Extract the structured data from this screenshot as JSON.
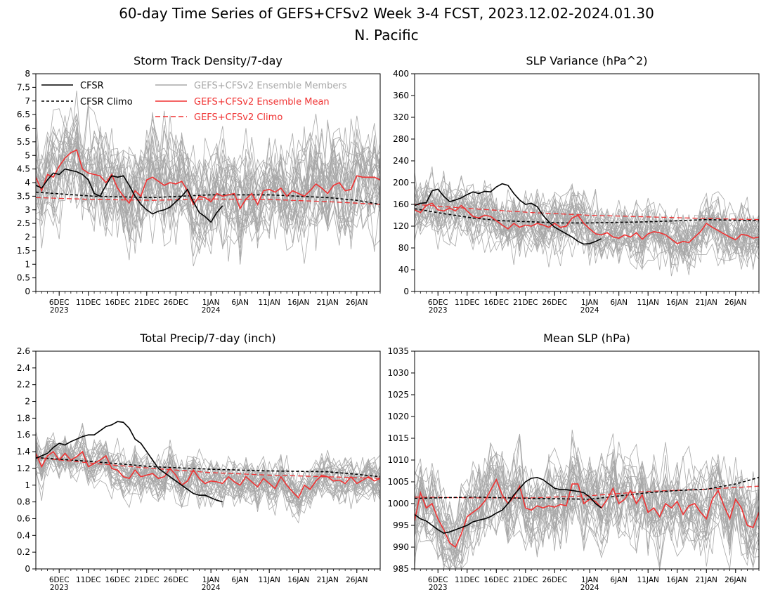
{
  "header": {
    "title": "60-day Time Series of GEFS+CFSv2 Week 3-4 FCST, 2023.12.02-2024.01.30",
    "subtitle": "N. Pacific"
  },
  "legend": {
    "cfsr": "CFSR",
    "cfsr_climo": "CFSR Climo",
    "members": "GEFS+CFSv2 Ensemble Members",
    "mean": "GEFS+CFSv2 Ensemble Mean",
    "climo": "GEFS+CFSv2 Climo"
  },
  "colors": {
    "cfsr": "#000000",
    "members": "#a8a8a8",
    "ensemble": "#f03232"
  },
  "x_ticks": [
    {
      "day": 4,
      "label": "6DEC",
      "year": "2023"
    },
    {
      "day": 9,
      "label": "11DEC"
    },
    {
      "day": 14,
      "label": "16DEC"
    },
    {
      "day": 19,
      "label": "21DEC"
    },
    {
      "day": 24,
      "label": "26DEC"
    },
    {
      "day": 30,
      "label": "1JAN",
      "year": "2024"
    },
    {
      "day": 35,
      "label": "6JAN"
    },
    {
      "day": 40,
      "label": "11JAN"
    },
    {
      "day": 45,
      "label": "16JAN"
    },
    {
      "day": 50,
      "label": "21JAN"
    },
    {
      "day": 55,
      "label": "26JAN"
    }
  ],
  "chart_data": [
    {
      "type": "line",
      "title": "Storm Track Density/7-day",
      "ylim": [
        0,
        8
      ],
      "yticks": [
        0,
        0.5,
        1,
        1.5,
        2,
        2.5,
        3,
        3.5,
        4,
        4.5,
        5,
        5.5,
        6,
        6.5,
        7,
        7.5,
        8
      ],
      "xlim": [
        0,
        59
      ],
      "legend": "top-left",
      "member_count": 30,
      "member_spread": 1.3,
      "member_seed": 11,
      "series": [
        {
          "name": "CFSR",
          "x": [
            0,
            1,
            2,
            3,
            4,
            5,
            6,
            7,
            8,
            9,
            10,
            11,
            12,
            13,
            14,
            15,
            16,
            17,
            18,
            19,
            20,
            21,
            22,
            23,
            24,
            25,
            26,
            27,
            28,
            29,
            30,
            31,
            32
          ],
          "values": [
            3.9,
            3.8,
            4.1,
            4.35,
            4.3,
            4.5,
            4.45,
            4.4,
            4.3,
            4.1,
            3.6,
            3.5,
            3.9,
            4.25,
            4.2,
            4.25,
            3.9,
            3.5,
            3.2,
            3.0,
            2.85,
            2.95,
            3.0,
            3.1,
            3.3,
            3.5,
            3.75,
            3.3,
            2.9,
            2.75,
            2.55,
            2.9,
            3.15
          ]
        },
        {
          "name": "CFSR Climo",
          "x": [
            0,
            10,
            20,
            30,
            40,
            50,
            55,
            59
          ],
          "values": [
            3.65,
            3.5,
            3.45,
            3.55,
            3.55,
            3.45,
            3.35,
            3.2
          ]
        },
        {
          "name": "GEFS+CFSv2 Ensemble Mean",
          "x": [
            0,
            1,
            2,
            3,
            4,
            5,
            6,
            7,
            8,
            9,
            10,
            11,
            12,
            13,
            14,
            15,
            16,
            17,
            18,
            19,
            20,
            21,
            22,
            23,
            24,
            25,
            26,
            27,
            28,
            29,
            30,
            31,
            32,
            33,
            34,
            35,
            36,
            37,
            38,
            39,
            40,
            41,
            42,
            43,
            44,
            45,
            46,
            47,
            48,
            49,
            50,
            51,
            52,
            53,
            54,
            55,
            56,
            57,
            58,
            59
          ],
          "values": [
            4.2,
            3.7,
            4.3,
            4.2,
            4.6,
            4.9,
            5.1,
            5.2,
            4.5,
            4.35,
            4.3,
            4.25,
            4.0,
            4.3,
            3.8,
            3.5,
            3.25,
            3.7,
            3.5,
            4.1,
            4.2,
            4.05,
            3.9,
            4.0,
            3.95,
            4.05,
            3.7,
            3.2,
            3.5,
            3.45,
            3.3,
            3.6,
            3.5,
            3.55,
            3.6,
            3.05,
            3.4,
            3.6,
            3.2,
            3.7,
            3.75,
            3.65,
            3.8,
            3.5,
            3.7,
            3.6,
            3.5,
            3.7,
            3.95,
            3.8,
            3.6,
            3.9,
            4.0,
            3.7,
            3.75,
            4.25,
            4.2,
            4.2,
            4.2,
            4.1
          ]
        },
        {
          "name": "GEFS+CFSv2 Climo",
          "x": [
            0,
            10,
            20,
            30,
            40,
            50,
            59
          ],
          "values": [
            3.45,
            3.38,
            3.35,
            3.4,
            3.38,
            3.3,
            3.2
          ]
        }
      ]
    },
    {
      "type": "line",
      "title": "SLP Variance (hPa^2)",
      "ylim": [
        0,
        400
      ],
      "yticks": [
        0,
        40,
        80,
        120,
        160,
        200,
        240,
        280,
        320,
        360,
        400
      ],
      "xlim": [
        0,
        59
      ],
      "member_count": 30,
      "member_spread": 38,
      "member_seed": 23,
      "series": [
        {
          "name": "CFSR",
          "x": [
            0,
            1,
            2,
            3,
            4,
            5,
            6,
            7,
            8,
            9,
            10,
            11,
            12,
            13,
            14,
            15,
            16,
            17,
            18,
            19,
            20,
            21,
            22,
            23,
            24,
            25,
            26,
            27,
            28,
            29,
            30,
            31,
            32
          ],
          "values": [
            158,
            162,
            163,
            185,
            188,
            175,
            165,
            168,
            172,
            178,
            183,
            180,
            184,
            183,
            192,
            198,
            195,
            180,
            168,
            160,
            162,
            156,
            140,
            128,
            118,
            112,
            106,
            100,
            92,
            87,
            88,
            92,
            97
          ]
        },
        {
          "name": "CFSR Climo",
          "x": [
            0,
            5,
            10,
            15,
            20,
            25,
            30,
            40,
            50,
            59
          ],
          "values": [
            152,
            143,
            135,
            130,
            128,
            126,
            126,
            128,
            132,
            130
          ]
        },
        {
          "name": "GEFS+CFSv2 Ensemble Mean",
          "x": [
            0,
            1,
            2,
            3,
            4,
            5,
            6,
            7,
            8,
            9,
            10,
            11,
            12,
            13,
            14,
            15,
            16,
            17,
            18,
            19,
            20,
            21,
            22,
            23,
            24,
            25,
            26,
            27,
            28,
            29,
            30,
            31,
            32,
            33,
            34,
            35,
            36,
            37,
            38,
            39,
            40,
            41,
            42,
            43,
            44,
            45,
            46,
            47,
            48,
            49,
            50,
            51,
            52,
            53,
            54,
            55,
            56,
            57,
            58,
            59
          ],
          "values": [
            150,
            145,
            158,
            162,
            150,
            148,
            153,
            148,
            158,
            148,
            138,
            135,
            140,
            138,
            130,
            122,
            115,
            125,
            118,
            122,
            120,
            125,
            122,
            118,
            125,
            118,
            120,
            135,
            140,
            125,
            115,
            106,
            104,
            108,
            100,
            98,
            104,
            100,
            108,
            96,
            106,
            110,
            108,
            104,
            96,
            88,
            92,
            90,
            100,
            110,
            125,
            118,
            112,
            106,
            100,
            95,
            105,
            103,
            98,
            100
          ]
        },
        {
          "name": "GEFS+CFSv2 Climo",
          "x": [
            0,
            10,
            20,
            30,
            40,
            50,
            59
          ],
          "values": [
            160,
            152,
            145,
            140,
            137,
            134,
            132
          ]
        }
      ]
    },
    {
      "type": "line",
      "title": "Total Precip/7-day (inch)",
      "ylim": [
        0,
        2.6
      ],
      "yticks": [
        0,
        0.2,
        0.4,
        0.6,
        0.8,
        1,
        1.2,
        1.4,
        1.6,
        1.8,
        2,
        2.2,
        2.4,
        2.6
      ],
      "xlim": [
        0,
        59
      ],
      "member_count": 30,
      "member_spread": 0.18,
      "member_seed": 37,
      "series": [
        {
          "name": "CFSR",
          "x": [
            0,
            1,
            2,
            3,
            4,
            5,
            6,
            7,
            8,
            9,
            10,
            11,
            12,
            13,
            14,
            15,
            16,
            17,
            18,
            19,
            20,
            21,
            22,
            23,
            24,
            25,
            26,
            27,
            28,
            29,
            30,
            31,
            32
          ],
          "values": [
            1.32,
            1.35,
            1.38,
            1.45,
            1.5,
            1.48,
            1.52,
            1.55,
            1.58,
            1.6,
            1.6,
            1.65,
            1.7,
            1.72,
            1.76,
            1.75,
            1.68,
            1.55,
            1.5,
            1.4,
            1.3,
            1.2,
            1.15,
            1.1,
            1.05,
            1.0,
            0.95,
            0.9,
            0.88,
            0.88,
            0.85,
            0.82,
            0.8
          ]
        },
        {
          "name": "CFSR Climo",
          "x": [
            0,
            10,
            20,
            30,
            40,
            50,
            55,
            59
          ],
          "values": [
            1.33,
            1.28,
            1.22,
            1.19,
            1.17,
            1.16,
            1.13,
            1.1
          ]
        },
        {
          "name": "GEFS+CFSv2 Ensemble Mean",
          "x": [
            0,
            1,
            2,
            3,
            4,
            5,
            6,
            7,
            8,
            9,
            10,
            11,
            12,
            13,
            14,
            15,
            16,
            17,
            18,
            19,
            20,
            21,
            22,
            23,
            24,
            25,
            26,
            27,
            28,
            29,
            30,
            31,
            32,
            33,
            34,
            35,
            36,
            37,
            38,
            39,
            40,
            41,
            42,
            43,
            44,
            45,
            46,
            47,
            48,
            49,
            50,
            51,
            52,
            53,
            54,
            55,
            56,
            57,
            58,
            59
          ],
          "values": [
            1.38,
            1.22,
            1.35,
            1.4,
            1.3,
            1.38,
            1.3,
            1.34,
            1.4,
            1.22,
            1.26,
            1.3,
            1.35,
            1.2,
            1.18,
            1.1,
            1.08,
            1.18,
            1.1,
            1.12,
            1.14,
            1.08,
            1.1,
            1.2,
            1.12,
            1.0,
            1.05,
            1.18,
            1.08,
            1.02,
            1.05,
            1.04,
            1.02,
            1.1,
            1.04,
            1.0,
            1.1,
            1.04,
            0.98,
            1.08,
            1.02,
            0.96,
            1.1,
            1.0,
            0.92,
            0.85,
            1.0,
            0.95,
            1.05,
            1.12,
            1.1,
            1.05,
            1.06,
            1.02,
            1.1,
            1.02,
            1.06,
            1.1,
            1.05,
            1.08
          ]
        },
        {
          "name": "GEFS+CFSv2 Climo",
          "x": [
            0,
            10,
            20,
            30,
            40,
            50,
            59
          ],
          "values": [
            1.33,
            1.26,
            1.2,
            1.15,
            1.12,
            1.1,
            1.08
          ]
        }
      ]
    },
    {
      "type": "line",
      "title": "Mean SLP (hPa)",
      "ylim": [
        985,
        1035
      ],
      "yticks": [
        985,
        990,
        995,
        1000,
        1005,
        1010,
        1015,
        1020,
        1025,
        1030,
        1035
      ],
      "xlim": [
        0,
        59
      ],
      "member_count": 30,
      "member_spread": 6.5,
      "member_seed": 53,
      "series": [
        {
          "name": "CFSR",
          "x": [
            0,
            1,
            2,
            3,
            4,
            5,
            6,
            7,
            8,
            9,
            10,
            11,
            12,
            13,
            14,
            15,
            16,
            17,
            18,
            19,
            20,
            21,
            22,
            23,
            24,
            25,
            26,
            27,
            28,
            29,
            30,
            31,
            32
          ],
          "values": [
            997.5,
            996.5,
            996,
            995,
            994,
            993.2,
            993.5,
            994,
            994.5,
            995,
            995.8,
            996.2,
            996.5,
            997,
            997.8,
            998.5,
            1000,
            1002,
            1003.5,
            1005,
            1005.8,
            1006,
            1005.5,
            1004.5,
            1003.5,
            1003.2,
            1003.2,
            1003,
            1002.8,
            1002.5,
            1001.5,
            1000,
            999
          ]
        },
        {
          "name": "CFSR Climo",
          "x": [
            0,
            10,
            20,
            30,
            40,
            45,
            50,
            55,
            59
          ],
          "values": [
            1001.2,
            1001.5,
            1001.2,
            1001,
            1002.5,
            1003,
            1003.3,
            1004.5,
            1006
          ]
        },
        {
          "name": "GEFS+CFSv2 Ensemble Mean",
          "x": [
            0,
            1,
            2,
            3,
            4,
            5,
            6,
            7,
            8,
            9,
            10,
            11,
            12,
            13,
            14,
            15,
            16,
            17,
            18,
            19,
            20,
            21,
            22,
            23,
            24,
            25,
            26,
            27,
            28,
            29,
            30,
            31,
            32,
            33,
            34,
            35,
            36,
            37,
            38,
            39,
            40,
            41,
            42,
            43,
            44,
            45,
            46,
            47,
            48,
            49,
            50,
            51,
            52,
            53,
            54,
            55,
            56,
            57,
            58,
            59
          ],
          "values": [
            996,
            1002.5,
            999,
            1000,
            996.5,
            994,
            991,
            990,
            993,
            997,
            998,
            999,
            1000.5,
            1003,
            1005.5,
            1002,
            1000,
            1001.5,
            1004,
            999,
            998.5,
            999.5,
            999,
            999.5,
            999.2,
            999.8,
            999.5,
            1004.5,
            1004.5,
            1000,
            1001,
            1000.5,
            999,
            1001,
            1003.5,
            1000,
            1001,
            1003,
            1000,
            1002,
            998,
            999,
            997,
            1000,
            999,
            1000.5,
            997.5,
            999.5,
            1000,
            998,
            996.5,
            1001,
            1003,
            999.5,
            996.5,
            1001,
            999,
            995,
            994.5,
            998
          ]
        },
        {
          "name": "GEFS+CFSv2 Climo",
          "x": [
            0,
            10,
            20,
            30,
            40,
            50,
            59
          ],
          "values": [
            1001.5,
            1001.3,
            1001.3,
            1001.8,
            1002.8,
            1003.3,
            1004
          ]
        }
      ]
    }
  ]
}
